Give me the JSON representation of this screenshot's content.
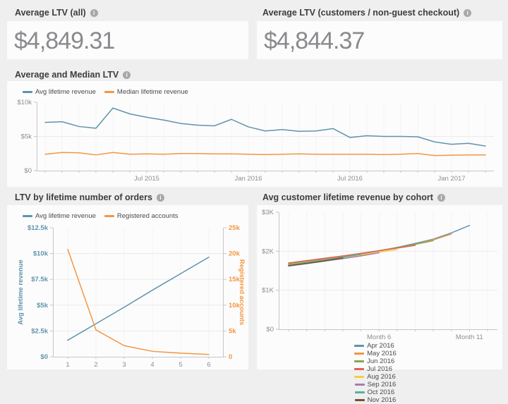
{
  "ui": {
    "info_glyph": "i"
  },
  "colors": {
    "accent_blue": "#5f94aa",
    "accent_orange": "#f49640",
    "page_background": "#efeff0",
    "card_background": "#fcfcfd"
  },
  "kpi_cards": [
    {
      "title": "Average LTV (all)",
      "value": "$4,849.31"
    },
    {
      "title": "Average LTV (customers / non-guest checkout)",
      "value": "$4,844.37"
    }
  ],
  "panels": [
    {
      "title": "Average and Median LTV"
    },
    {
      "title": "LTV by lifetime number of orders"
    },
    {
      "title": "Avg customer lifetime revenue by cohort"
    }
  ],
  "chart_data": [
    {
      "id": "chart-avg-median",
      "type": "line",
      "title": "Average and Median LTV",
      "categories": [
        "Jan 2015",
        "Feb 2015",
        "Mar 2015",
        "Apr 2015",
        "May 2015",
        "Jun 2015",
        "Jul 2015",
        "Aug 2015",
        "Sep 2015",
        "Oct 2015",
        "Nov 2015",
        "Dec 2015",
        "Jan 2016",
        "Feb 2016",
        "Mar 2016",
        "Apr 2016",
        "May 2016",
        "Jun 2016",
        "Jul 2016",
        "Aug 2016",
        "Sep 2016",
        "Oct 2016",
        "Nov 2016",
        "Dec 2016",
        "Jan 2017",
        "Feb 2017",
        "Mar 2017"
      ],
      "x_tick_labels": [
        {
          "index": 6,
          "label": "Jul 2015"
        },
        {
          "index": 12,
          "label": "Jan 2016"
        },
        {
          "index": 18,
          "label": "Jul 2016"
        },
        {
          "index": 24,
          "label": "Jan 2017"
        }
      ],
      "y_axis": {
        "min": 0,
        "max": 10000,
        "ticks": [
          {
            "v": 0,
            "label": "$0"
          },
          {
            "v": 5000,
            "label": "$5k"
          },
          {
            "v": 10000,
            "label": "$10k"
          }
        ]
      },
      "legend_position": "top-left",
      "series": [
        {
          "name": "Avg lifetime revenue",
          "color": "#5f94aa",
          "values": [
            7050,
            7150,
            6450,
            6200,
            9150,
            8300,
            7800,
            7400,
            6900,
            6650,
            6550,
            7500,
            6400,
            5800,
            6000,
            5750,
            5800,
            6150,
            4850,
            5100,
            5000,
            5000,
            4950,
            4200,
            3850,
            4000,
            3600
          ]
        },
        {
          "name": "Median lifetime revenue",
          "color": "#f49640",
          "values": [
            2400,
            2650,
            2600,
            2300,
            2650,
            2400,
            2450,
            2400,
            2500,
            2500,
            2450,
            2450,
            2400,
            2350,
            2400,
            2450,
            2400,
            2400,
            2400,
            2400,
            2350,
            2400,
            2500,
            2200,
            2250,
            2300,
            2300
          ]
        }
      ]
    },
    {
      "id": "chart-ltv-orders",
      "type": "line",
      "title": "LTV by lifetime number of orders",
      "categories": [
        "1",
        "2",
        "3",
        "4",
        "5",
        "6"
      ],
      "x_tick_labels": [
        {
          "index": 0,
          "label": "1"
        },
        {
          "index": 1,
          "label": "2"
        },
        {
          "index": 2,
          "label": "3"
        },
        {
          "index": 3,
          "label": "4"
        },
        {
          "index": 4,
          "label": "5"
        },
        {
          "index": 5,
          "label": "6"
        }
      ],
      "y_left": {
        "min": 0,
        "max": 12500,
        "title": "Avg lifetime revenue",
        "color": "#5f94aa",
        "ticks": [
          {
            "v": 0,
            "label": "$0"
          },
          {
            "v": 2500,
            "label": "$2.5k"
          },
          {
            "v": 5000,
            "label": "$5k"
          },
          {
            "v": 7500,
            "label": "$7.5k"
          },
          {
            "v": 10000,
            "label": "$10k"
          },
          {
            "v": 12500,
            "label": "$12.5k"
          }
        ]
      },
      "y_right": {
        "min": 0,
        "max": 25000,
        "title": "Registered accounts",
        "color": "#f49640",
        "ticks": [
          {
            "v": 0,
            "label": "0"
          },
          {
            "v": 5000,
            "label": "5k"
          },
          {
            "v": 10000,
            "label": "10k"
          },
          {
            "v": 15000,
            "label": "15k"
          },
          {
            "v": 20000,
            "label": "20k"
          },
          {
            "v": 25000,
            "label": "25k"
          }
        ]
      },
      "legend_position": "top-left",
      "series": [
        {
          "name": "Avg lifetime revenue",
          "color": "#5f94aa",
          "axis": "left",
          "values": [
            1600,
            3200,
            4800,
            6450,
            8050,
            9650
          ]
        },
        {
          "name": "Registered accounts",
          "color": "#f49640",
          "axis": "right",
          "values": [
            20800,
            5200,
            2150,
            1050,
            700,
            450
          ]
        }
      ]
    },
    {
      "id": "chart-cohort",
      "type": "line",
      "title": "Avg customer lifetime revenue by cohort",
      "categories": [
        "Month 1",
        "Month 2",
        "Month 3",
        "Month 4",
        "Month 5",
        "Month 6",
        "Month 7",
        "Month 8",
        "Month 9",
        "Month 10",
        "Month 11",
        "Month 12"
      ],
      "x_tick_labels": [
        {
          "index": 5,
          "label": "Month 6"
        },
        {
          "index": 10,
          "label": "Month 11"
        }
      ],
      "y_axis": {
        "min": 0,
        "max": 3000,
        "ticks": [
          {
            "v": 0,
            "label": "$0"
          },
          {
            "v": 1000,
            "label": "$1K"
          },
          {
            "v": 2000,
            "label": "$2K"
          },
          {
            "v": 3000,
            "label": "$3K"
          }
        ]
      },
      "legend_position": "bottom-center",
      "legend_rows": [
        5,
        3
      ],
      "series": [
        {
          "name": "Apr 2016",
          "color": "#5f94aa",
          "values": [
            1640,
            1705,
            1775,
            1850,
            1930,
            2010,
            2100,
            2200,
            2310,
            2470,
            2660
          ]
        },
        {
          "name": "May 2016",
          "color": "#f49640",
          "values": [
            1665,
            1730,
            1795,
            1865,
            1935,
            2010,
            2090,
            2180,
            2290,
            2440
          ]
        },
        {
          "name": "Jun 2016",
          "color": "#83a853",
          "values": [
            1685,
            1745,
            1810,
            1875,
            1945,
            2015,
            2090,
            2175,
            2270
          ]
        },
        {
          "name": "Jul 2016",
          "color": "#e4604f",
          "values": [
            1700,
            1760,
            1820,
            1880,
            1945,
            2010,
            2080,
            2150
          ]
        },
        {
          "name": "Aug 2016",
          "color": "#efcf40",
          "values": [
            1655,
            1715,
            1775,
            1840,
            1905,
            1975,
            2045
          ]
        },
        {
          "name": "Sep 2016",
          "color": "#a87ca8",
          "values": [
            1620,
            1680,
            1745,
            1810,
            1880,
            1960
          ]
        },
        {
          "name": "Oct 2016",
          "color": "#53b2a2",
          "values": [
            1650,
            1710,
            1775,
            1845,
            1920
          ]
        },
        {
          "name": "Nov 2016",
          "color": "#75502f",
          "values": [
            1630,
            1690,
            1755,
            1830
          ]
        }
      ]
    }
  ]
}
